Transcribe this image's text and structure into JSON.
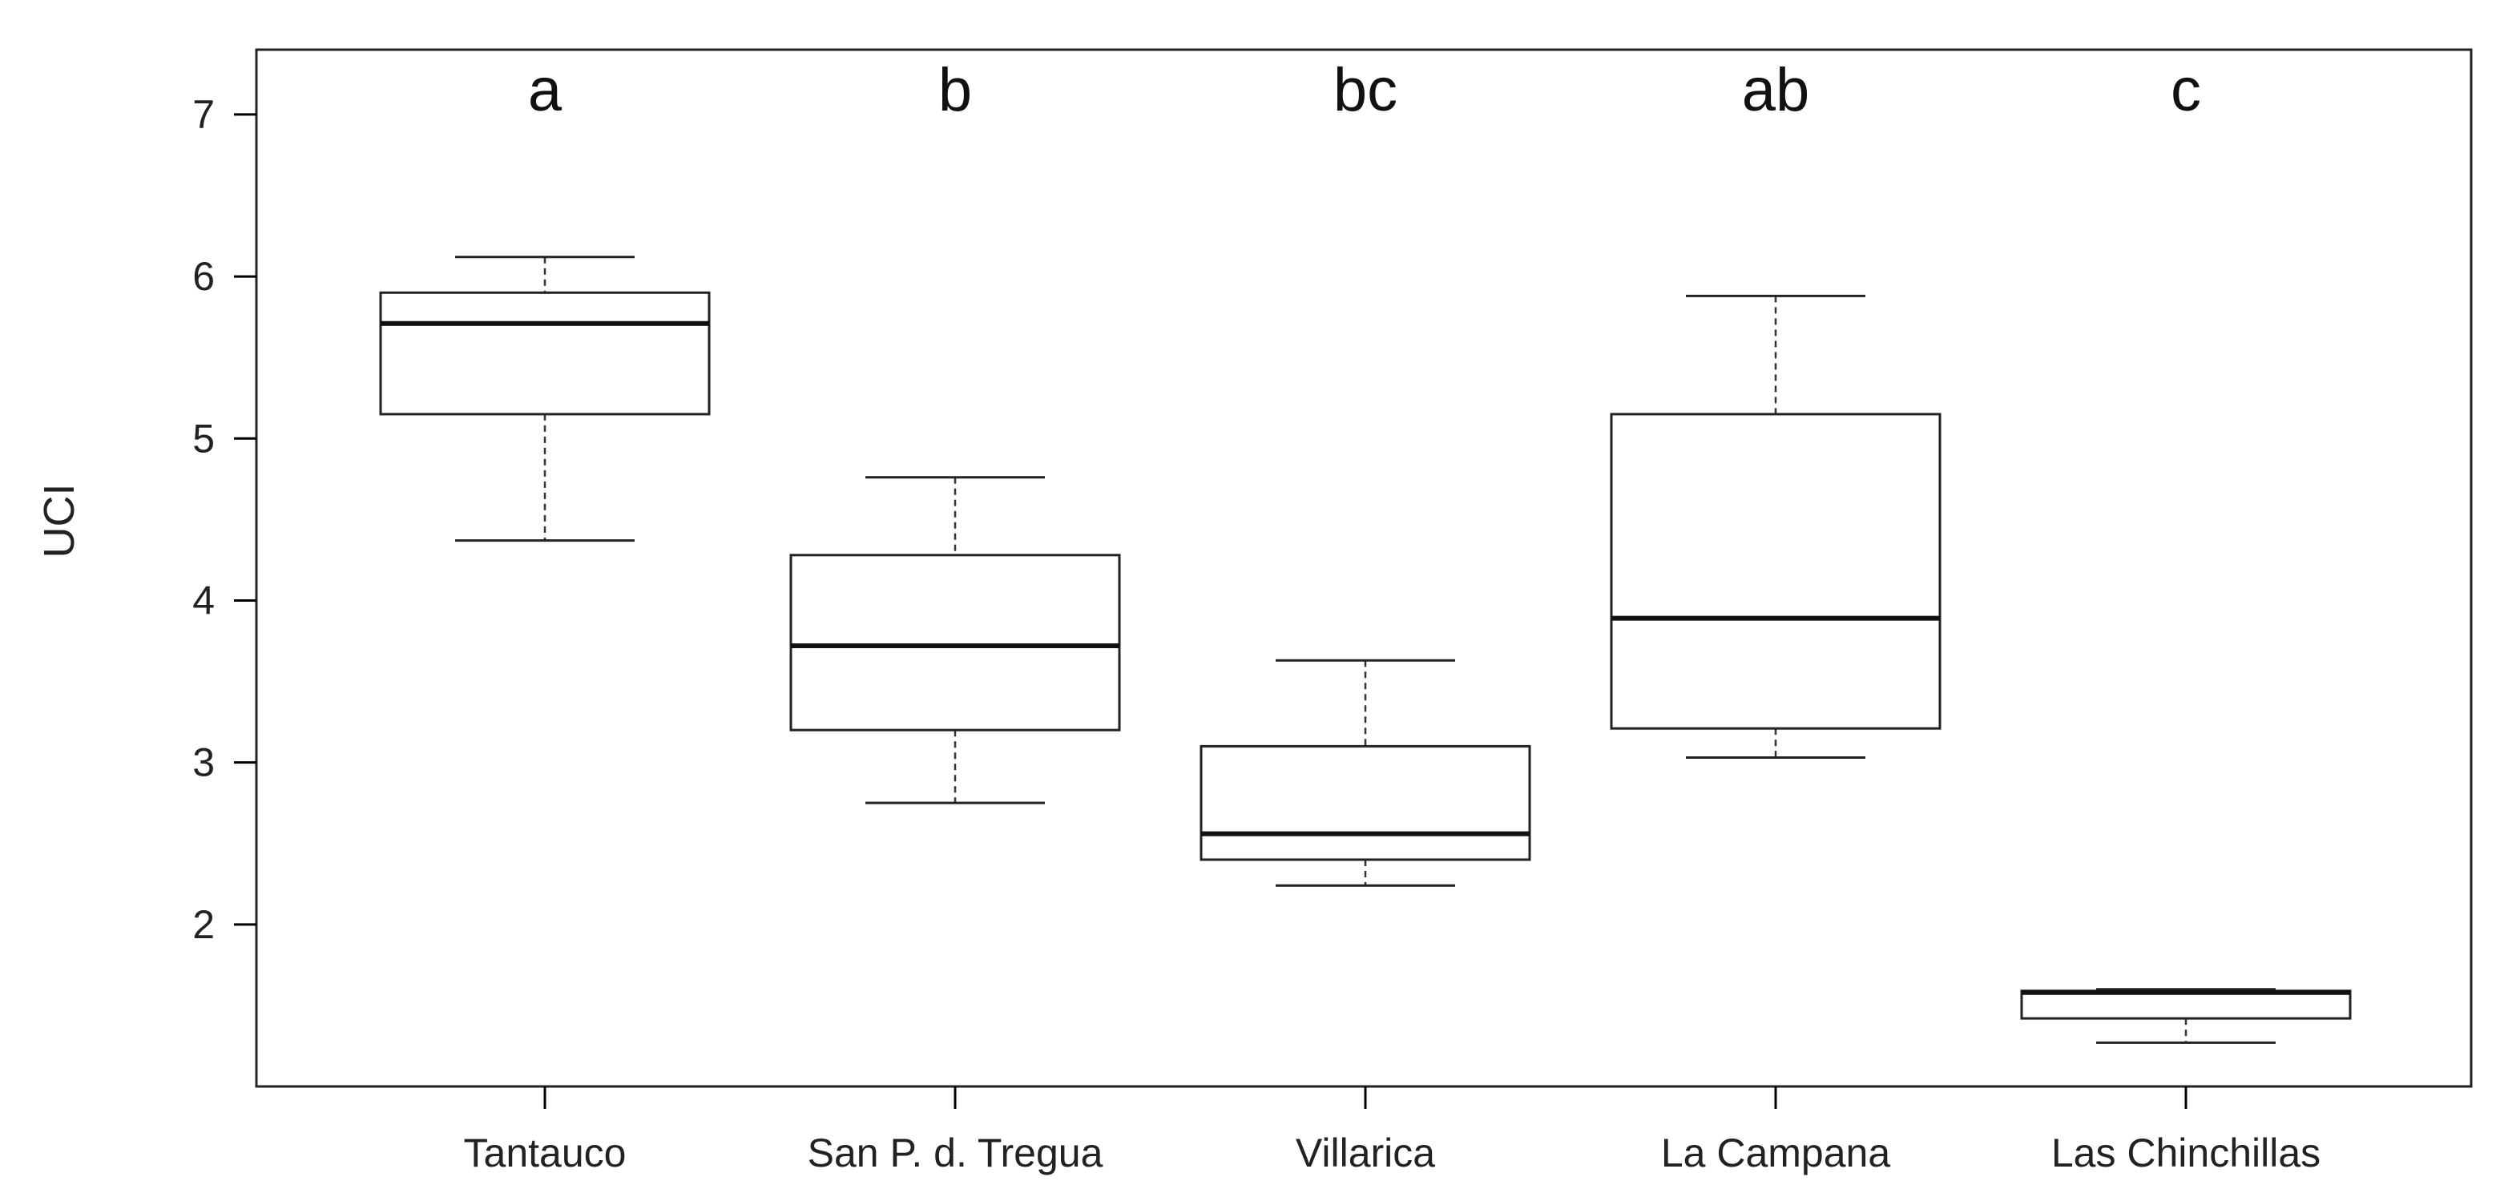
{
  "chart_data": {
    "type": "boxplot",
    "title": "",
    "xlabel": "",
    "ylabel": "UCI",
    "ylim": [
      1.0,
      7.4
    ],
    "yticks": [
      2,
      3,
      4,
      5,
      6,
      7
    ],
    "grid": false,
    "categories": [
      "Tantauco",
      "San P. d. Tregua",
      "Villarica",
      "La Campana",
      "Las Chinchillas"
    ],
    "group_letters": [
      "a",
      "b",
      "bc",
      "ab",
      "c"
    ],
    "boxes": [
      {
        "min": 4.37,
        "q1": 5.15,
        "median": 5.71,
        "q3": 5.9,
        "max": 6.12
      },
      {
        "min": 2.75,
        "q1": 3.2,
        "median": 3.72,
        "q3": 4.28,
        "max": 4.76
      },
      {
        "min": 2.24,
        "q1": 2.4,
        "median": 2.56,
        "q3": 3.1,
        "max": 3.63
      },
      {
        "min": 3.03,
        "q1": 3.21,
        "median": 3.89,
        "q3": 5.15,
        "max": 5.88
      },
      {
        "min": 1.27,
        "q1": 1.42,
        "median": 1.58,
        "q3": 1.59,
        "max": 1.6
      }
    ]
  }
}
